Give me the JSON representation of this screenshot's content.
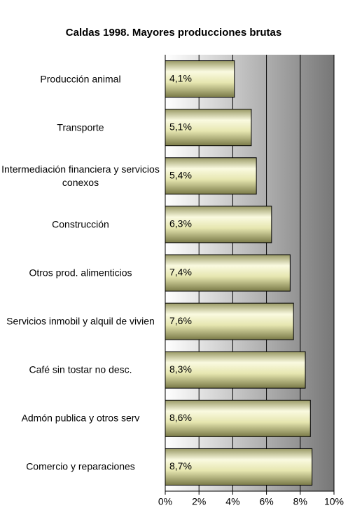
{
  "chart_data": {
    "type": "bar",
    "orientation": "horizontal",
    "title": "Caldas 1998. Mayores producciones brutas",
    "categories": [
      "Producción animal",
      "Transporte",
      "Intermediación financiera y servicios conexos",
      "Construcción",
      "Otros prod. alimenticios",
      "Servicios inmobil y alquil de vivien",
      "Café sin tostar no desc.",
      "Admón publica y otros serv",
      "Comercio y reparaciones"
    ],
    "values": [
      4.1,
      5.1,
      5.4,
      6.3,
      7.4,
      7.6,
      8.3,
      8.6,
      8.7
    ],
    "value_labels": [
      "4,1%",
      "5,1%",
      "5,4%",
      "6,3%",
      "7,4%",
      "7,6%",
      "8,3%",
      "8,6%",
      "8,7%"
    ],
    "color": "#e8e8b0",
    "xlim": [
      0,
      10
    ],
    "xticks": [
      {
        "value": 0,
        "label": "0%"
      },
      {
        "value": 2,
        "label": "2%"
      },
      {
        "value": 4,
        "label": "4%"
      },
      {
        "value": 6,
        "label": "6%"
      },
      {
        "value": 8,
        "label": "8%"
      },
      {
        "value": 10,
        "label": "10%"
      }
    ],
    "grid": true
  }
}
